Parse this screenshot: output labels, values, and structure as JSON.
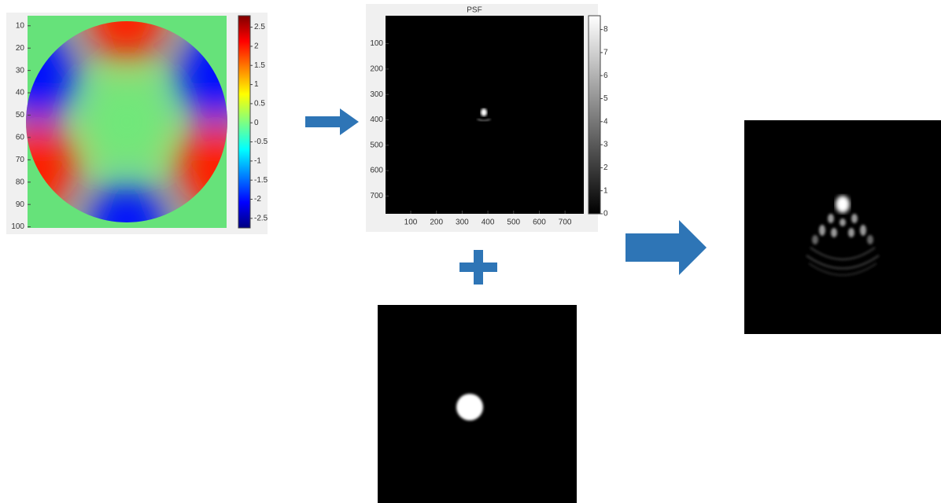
{
  "panels": {
    "wavefront": {
      "yticks": [
        10,
        20,
        30,
        40,
        50,
        60,
        70,
        80,
        90,
        100
      ],
      "ylim": [
        5.5,
        100.5
      ],
      "colorbar": {
        "ticks": [
          2.5,
          2,
          1.5,
          1,
          0.5,
          0,
          -0.5,
          -1,
          -1.5,
          -2,
          -2.5
        ],
        "lim": [
          -2.75,
          2.8
        ]
      }
    },
    "psf": {
      "title": "PSF",
      "xticks": [
        100,
        200,
        300,
        400,
        500,
        600,
        700
      ],
      "xlim": [
        2,
        773
      ],
      "yticks": [
        100,
        200,
        300,
        400,
        500,
        600,
        700
      ],
      "ylim": [
        -10,
        770
      ],
      "colorbar": {
        "ticks": [
          0,
          1,
          2,
          3,
          4,
          5,
          6,
          7,
          8
        ],
        "lim": [
          0,
          8.6
        ]
      }
    }
  }
}
